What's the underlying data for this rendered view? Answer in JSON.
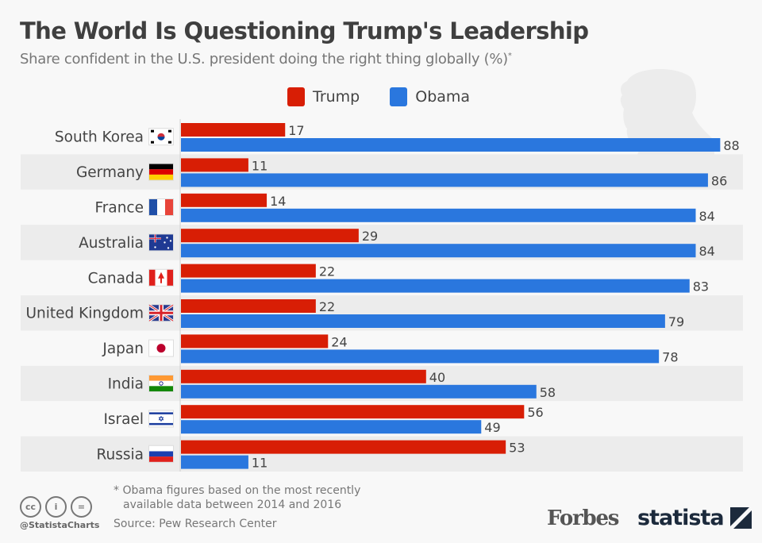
{
  "header": {
    "title": "The World Is Questioning Trump's Leadership",
    "subtitle": "Share confident in the U.S. president doing the right thing globally (%)",
    "subtitle_marker": "*"
  },
  "legend": [
    {
      "name": "Trump",
      "color": "#d81e05"
    },
    {
      "name": "Obama",
      "color": "#2a77de"
    }
  ],
  "footer": {
    "footnote_line1": "* Obama figures based on the most recently",
    "footnote_line2": "available data between 2014 and 2016",
    "source": "Source: Pew Research Center",
    "handle": "@StatistaCharts",
    "cc_icons": [
      "cc-icon",
      "attribution-icon",
      "no-derivatives-icon"
    ],
    "cc_labels": [
      "cc",
      "i",
      "="
    ],
    "brand_forbes": "Forbes",
    "brand_statista": "statista"
  },
  "chart_data": {
    "type": "bar",
    "orientation": "horizontal",
    "title": "The World Is Questioning Trump's Leadership",
    "subtitle": "Share confident in the U.S. president doing the right thing globally (%)*",
    "xlabel": "",
    "ylabel": "",
    "xlim": [
      0,
      100
    ],
    "grid": false,
    "legend_position": "top-center",
    "categories": [
      "South Korea",
      "Germany",
      "France",
      "Australia",
      "Canada",
      "United Kingdom",
      "Japan",
      "India",
      "Israel",
      "Russia"
    ],
    "flags": [
      "kr",
      "de",
      "fr",
      "au",
      "ca",
      "gb",
      "jp",
      "in",
      "il",
      "ru"
    ],
    "series": [
      {
        "name": "Trump",
        "color": "#d81e05",
        "values": [
          17,
          11,
          14,
          29,
          22,
          22,
          24,
          40,
          56,
          53
        ]
      },
      {
        "name": "Obama",
        "color": "#2a77de",
        "values": [
          88,
          86,
          84,
          84,
          83,
          79,
          78,
          58,
          49,
          11
        ]
      }
    ],
    "annotation": "* Obama figures based on the most recently available data between 2014 and 2016",
    "source": "Pew Research Center"
  }
}
